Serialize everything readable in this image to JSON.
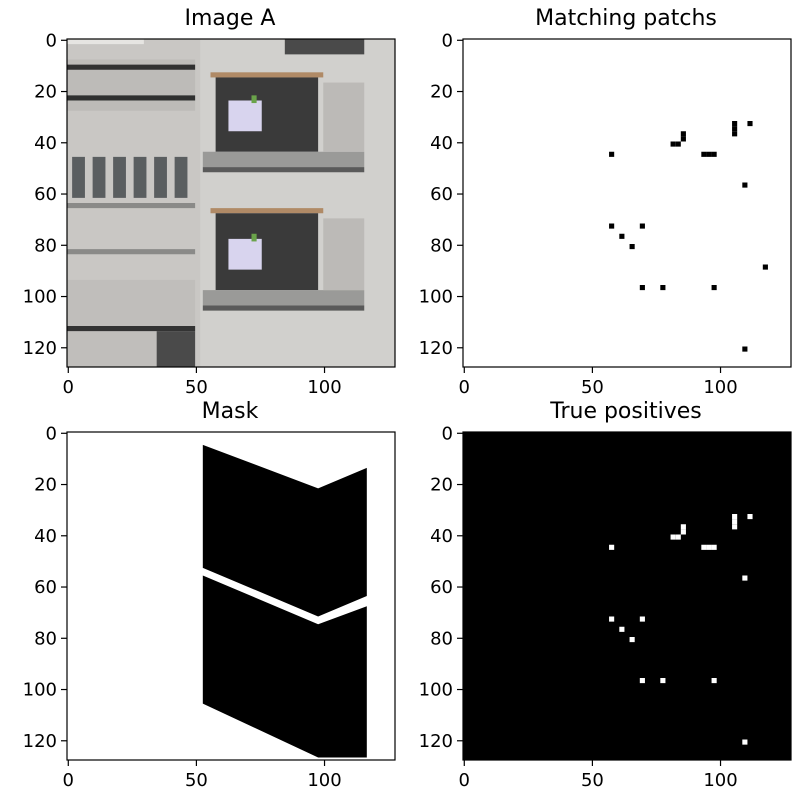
{
  "figure": {
    "panels": [
      {
        "title": "Image A"
      },
      {
        "title": "Matching patchs"
      },
      {
        "title": "Mask"
      },
      {
        "title": "True positives"
      }
    ]
  },
  "chart_data": [
    {
      "type": "heatmap",
      "subtype": "image",
      "title": "Image A",
      "xlim": [
        0,
        128
      ],
      "ylim": [
        128,
        0
      ],
      "xticks": [
        0,
        50,
        100
      ],
      "yticks": [
        0,
        20,
        40,
        60,
        80,
        100,
        120
      ],
      "description_colors": {
        "facade": "#c9c7c4",
        "window": "#3a3a3a",
        "awning": "#b08a66",
        "flowers": "#d8d4ee"
      },
      "elements": [
        {
          "kind": "balcony",
          "row_range": [
            13,
            58
          ],
          "col_range": [
            53,
            116
          ]
        },
        {
          "kind": "balcony",
          "row_range": [
            66,
            112
          ],
          "col_range": [
            53,
            116
          ]
        },
        {
          "kind": "shutter_windows",
          "row_range": [
            8,
            30
          ],
          "col_range": [
            0,
            52
          ]
        },
        {
          "kind": "windows",
          "row_range": [
            44,
            82
          ],
          "col_range": [
            0,
            50
          ]
        },
        {
          "kind": "shutter_windows",
          "row_range": [
            94,
            128
          ],
          "col_range": [
            0,
            52
          ]
        }
      ]
    },
    {
      "type": "heatmap",
      "subtype": "binary_image",
      "title": "Matching patchs",
      "background": "#ffffff",
      "foreground": "#000000",
      "xlim": [
        0,
        128
      ],
      "ylim": [
        128,
        0
      ],
      "xticks": [
        0,
        50,
        100
      ],
      "yticks": [
        0,
        20,
        40,
        60,
        80,
        100,
        120
      ],
      "patches": [
        [
          57,
          44
        ],
        [
          81,
          40
        ],
        [
          83,
          40
        ],
        [
          85,
          36
        ],
        [
          85,
          38
        ],
        [
          93,
          44
        ],
        [
          95,
          44
        ],
        [
          97,
          44
        ],
        [
          105,
          32
        ],
        [
          105,
          34
        ],
        [
          105,
          36
        ],
        [
          111,
          32
        ],
        [
          109,
          56
        ],
        [
          57,
          72
        ],
        [
          61,
          76
        ],
        [
          65,
          80
        ],
        [
          69,
          72
        ],
        [
          117,
          88
        ],
        [
          69,
          96
        ],
        [
          77,
          96
        ],
        [
          97,
          96
        ],
        [
          109,
          120
        ]
      ]
    },
    {
      "type": "heatmap",
      "subtype": "binary_image",
      "title": "Mask",
      "background": "#ffffff",
      "foreground": "#000000",
      "xlim": [
        0,
        128
      ],
      "ylim": [
        128,
        0
      ],
      "xticks": [
        0,
        50,
        100
      ],
      "yticks": [
        0,
        20,
        40,
        60,
        80,
        100,
        120
      ],
      "regions": [
        [
          [
            53,
            5
          ],
          [
            98,
            22
          ],
          [
            117,
            14
          ],
          [
            117,
            64
          ],
          [
            98,
            72
          ],
          [
            53,
            53
          ]
        ],
        [
          [
            53,
            56
          ],
          [
            98,
            75
          ],
          [
            117,
            68
          ],
          [
            117,
            127
          ],
          [
            98,
            127
          ],
          [
            53,
            106
          ]
        ]
      ]
    },
    {
      "type": "heatmap",
      "subtype": "binary_image",
      "title": "True positives",
      "background": "#000000",
      "foreground": "#ffffff",
      "xlim": [
        0,
        128
      ],
      "ylim": [
        128,
        0
      ],
      "xticks": [
        0,
        50,
        100
      ],
      "yticks": [
        0,
        20,
        40,
        60,
        80,
        100,
        120
      ],
      "patches": [
        [
          57,
          44
        ],
        [
          81,
          40
        ],
        [
          83,
          40
        ],
        [
          85,
          36
        ],
        [
          85,
          38
        ],
        [
          93,
          44
        ],
        [
          95,
          44
        ],
        [
          97,
          44
        ],
        [
          105,
          32
        ],
        [
          105,
          34
        ],
        [
          105,
          36
        ],
        [
          111,
          32
        ],
        [
          109,
          56
        ],
        [
          57,
          72
        ],
        [
          61,
          76
        ],
        [
          65,
          80
        ],
        [
          69,
          72
        ],
        [
          69,
          96
        ],
        [
          77,
          96
        ],
        [
          97,
          96
        ],
        [
          109,
          120
        ]
      ]
    }
  ]
}
